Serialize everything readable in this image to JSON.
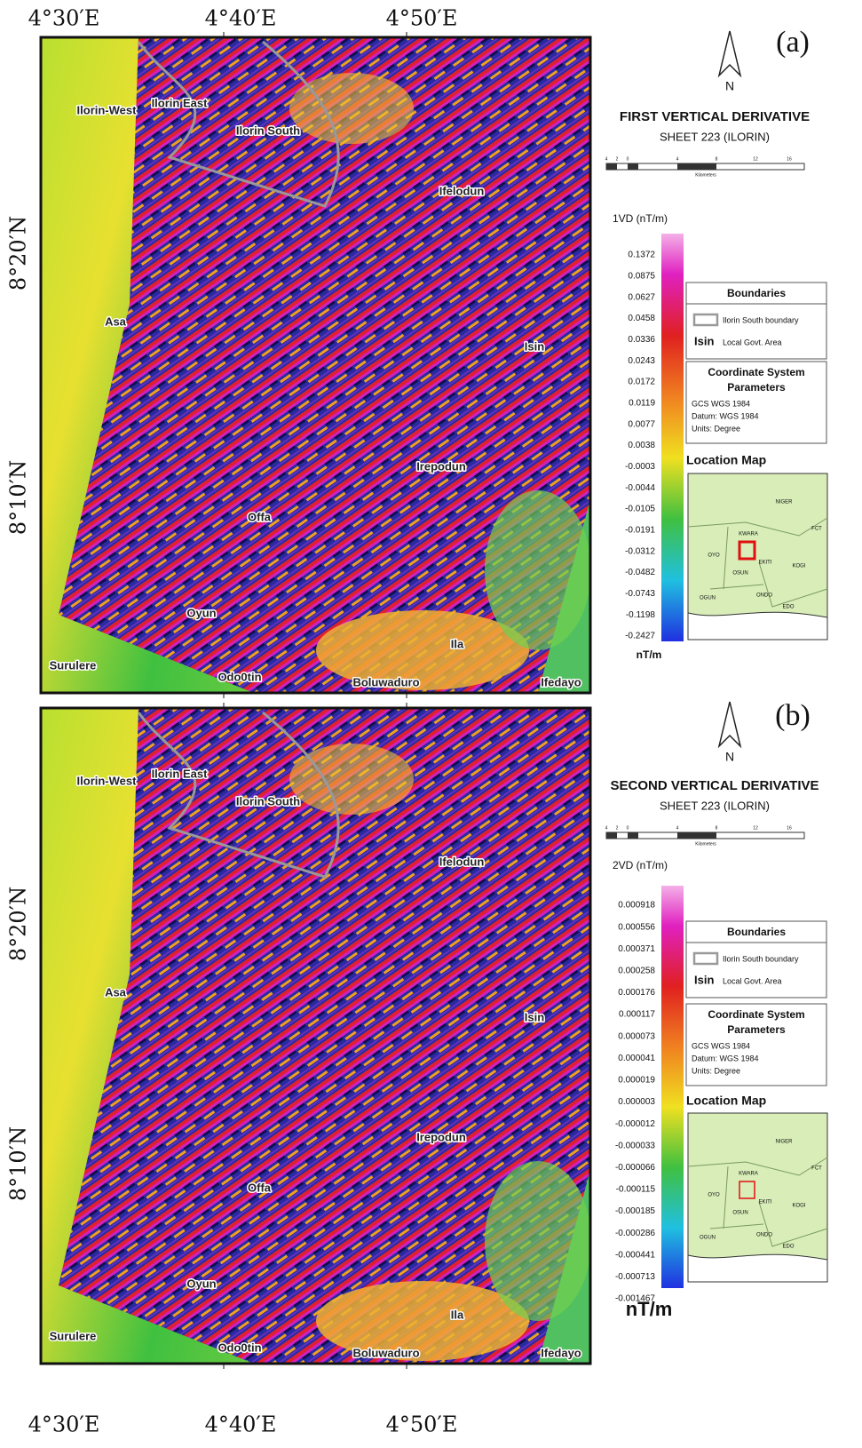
{
  "top_lon_labels": [
    "4°30′E",
    "4°40′E",
    "4°50′E"
  ],
  "bottom_lon_labels": [
    "4°30′E",
    "4°40′E",
    "4°50′E"
  ],
  "panels": [
    {
      "label": "(a)",
      "north": "N",
      "title": "FIRST VERTICAL DERIVATIVE",
      "sheet": "SHEET 223 (ILORIN)",
      "scale_labels": [
        "4",
        "2",
        "0",
        "4",
        "8",
        "12",
        "16"
      ],
      "scale_unit": "Kilometers",
      "legend_title": "1VD (nT/m)",
      "legend_values": [
        "0.1372",
        "0.0875",
        "0.0627",
        "0.0458",
        "0.0336",
        "0.0243",
        "0.0172",
        "0.0119",
        "0.0077",
        "0.0038",
        "-0.0003",
        "-0.0044",
        "-0.0105",
        "-0.0191",
        "-0.0312",
        "-0.0482",
        "-0.0743",
        "-0.1198",
        "-0.2427"
      ],
      "legend_unit": "nT/m",
      "lat_labels": [
        "8°20′N",
        "8°10′N"
      ],
      "places": [
        "Ilorin-West",
        "Ilorin East",
        "Ilorin South",
        "Ifelodun",
        "Asa",
        "Isin",
        "Irepodun",
        "Offa",
        "Oyun",
        "Ila",
        "Surulere",
        "Odo0tin",
        "Boluwaduro",
        "Ifedayo"
      ],
      "boundaries_title": "Boundaries",
      "boundary_item": "Ilorin South boundary",
      "lga_sample": "Isin",
      "lga_text": "Local Govt. Area",
      "coord_title": [
        "Coordinate System",
        "Parameters"
      ],
      "coord_lines": [
        "GCS WGS 1984",
        "Datum: WGS 1984",
        "Units: Degree"
      ],
      "location_title": "Location Map",
      "location_labels": [
        "NIGER",
        "KWARA",
        "FCT",
        "OYO",
        "OSUN",
        "EKITI",
        "KOGI",
        "OGUN",
        "ONDO",
        "EDO"
      ]
    },
    {
      "label": "(b)",
      "north": "N",
      "title": "SECOND VERTICAL DERIVATIVE",
      "sheet": "SHEET 223 (ILORIN)",
      "scale_labels": [
        "4",
        "2",
        "0",
        "4",
        "8",
        "12",
        "16"
      ],
      "scale_unit": "Kilometers",
      "legend_title": "2VD (nT/m)",
      "legend_values": [
        "0.000918",
        "0.000556",
        "0.000371",
        "0.000258",
        "0.000176",
        "0.000117",
        "0.000073",
        "0.000041",
        "0.000019",
        "0.000003",
        "-0.000012",
        "-0.000033",
        "-0.000066",
        "-0.000115",
        "-0.000185",
        "-0.000286",
        "-0.000441",
        "-0.000713",
        "-0.001467"
      ],
      "legend_unit": "nT/m",
      "lat_labels": [
        "8°20′N",
        "8°10′N"
      ],
      "places": [
        "Ilorin-West",
        "Ilorin East",
        "Ilorin South",
        "Ifelodun",
        "Asa",
        "Isin",
        "Irepodun",
        "Offa",
        "Oyun",
        "Ila",
        "Surulere",
        "Odo0tin",
        "Boluwaduro",
        "Ifedayo"
      ],
      "boundaries_title": "Boundaries",
      "boundary_item": "Ilorin South boundary",
      "lga_sample": "Isin",
      "lga_text": "Local Govt. Area",
      "coord_title": [
        "Coordinate System",
        "Parameters"
      ],
      "coord_lines": [
        "GCS WGS 1984",
        "Datum: WGS 1984",
        "Units: Degree"
      ],
      "location_title": "Location Map",
      "location_labels": [
        "NIGER",
        "KWARA",
        "FCT",
        "OYO",
        "OSUN",
        "EKITI",
        "KOGI",
        "OGUN",
        "ONDO",
        "EDO"
      ]
    }
  ]
}
